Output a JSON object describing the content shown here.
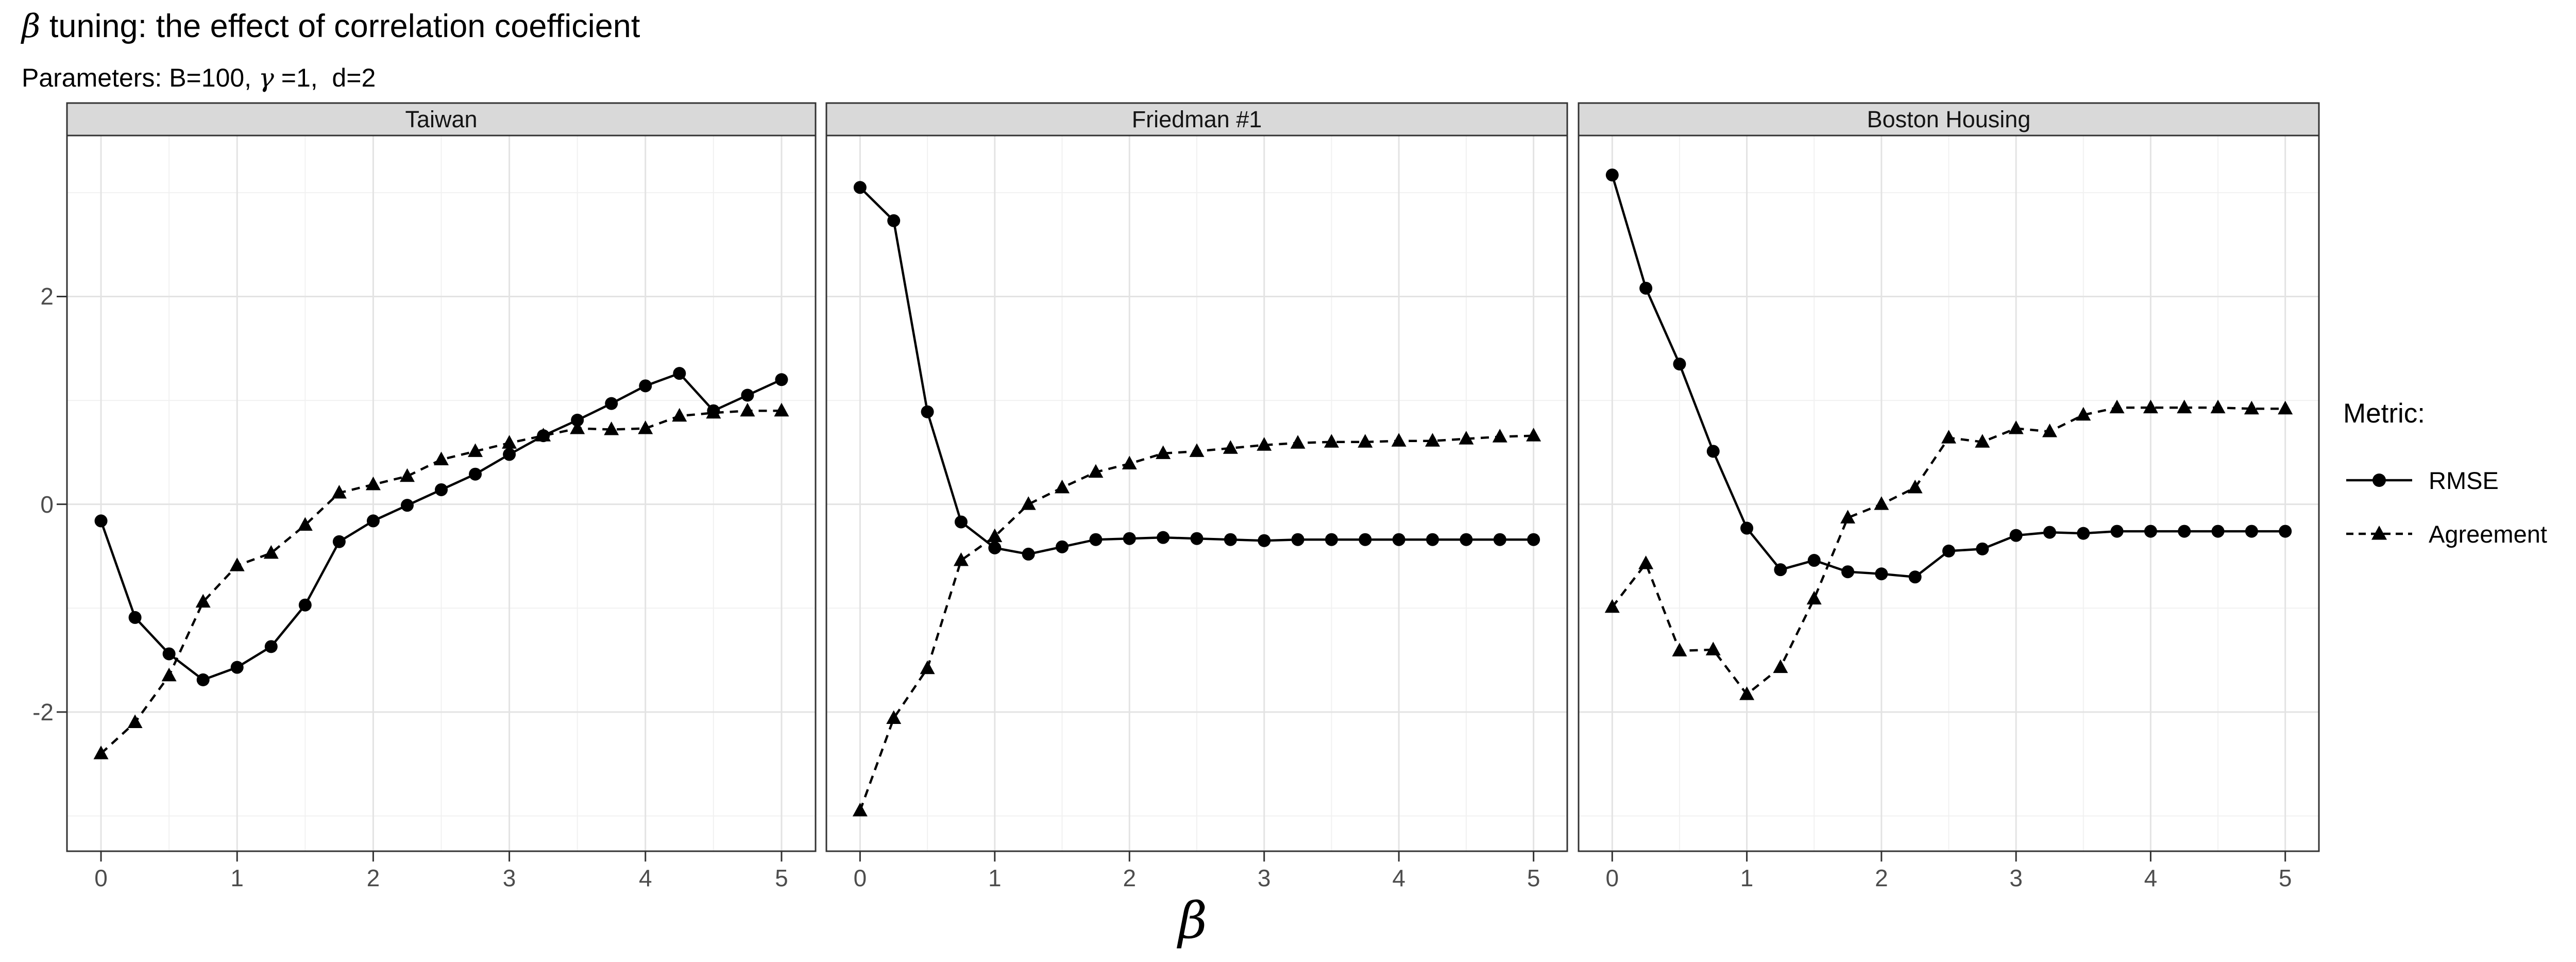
{
  "header": {
    "title_parts": {
      "symbol": "β",
      "text": " tuning: the effect of correlation coefficient"
    },
    "subtitle_parts": {
      "p1": "Parameters: B=100, ",
      "symbol": "γ",
      "p2": " =1,  d=2"
    }
  },
  "axes": {
    "x_label": "β",
    "x_tick_labels": [
      "0",
      "1",
      "2",
      "3",
      "4",
      "5"
    ],
    "y_tick_labels": [
      "2",
      "0",
      "-2"
    ]
  },
  "legend": {
    "title": "Metric:",
    "items": [
      {
        "label": "RMSE",
        "line": "solid",
        "marker": "circle"
      },
      {
        "label": "Agreement",
        "line": "dashed",
        "marker": "triangle"
      }
    ]
  },
  "colors": {
    "series": "#000000",
    "tick_label": "#4d4d4d",
    "grid_major": "#e3e3e3",
    "grid_minor": "#f1f1f1",
    "panel_border": "#333333",
    "strip_fill": "#d9d9d9",
    "background": "#ffffff"
  },
  "chart_data": {
    "type": "line",
    "title": "β tuning: the effect of correlation coefficient",
    "subtitle": "Parameters: B=100, γ =1,  d=2",
    "xlabel": "β",
    "ylabel": "",
    "legend_position": "right",
    "grid": true,
    "x_domain": [
      -0.25,
      5.25
    ],
    "y_domain": [
      -3.34,
      3.55
    ],
    "x_ticks": [
      0,
      1,
      2,
      3,
      4,
      5
    ],
    "y_ticks": [
      2,
      0,
      -2
    ],
    "x_minor_ticks": [
      0.5,
      1.5,
      2.5,
      3.5,
      4.5
    ],
    "y_minor_ticks": [
      3,
      1,
      -1,
      -3
    ],
    "x": [
      0,
      0.25,
      0.5,
      0.75,
      1,
      1.25,
      1.5,
      1.75,
      2,
      2.25,
      2.5,
      2.75,
      3,
      3.25,
      3.5,
      3.75,
      4,
      4.25,
      4.5,
      4.75,
      5
    ],
    "series_styles": [
      {
        "name": "RMSE",
        "line": "solid",
        "marker": "circle"
      },
      {
        "name": "Agreement",
        "line": "dashed",
        "marker": "triangle"
      }
    ],
    "panels": [
      {
        "label": "Taiwan",
        "series": [
          {
            "name": "RMSE",
            "values": [
              -0.16,
              -1.09,
              -1.44,
              -1.69,
              -1.57,
              -1.37,
              -0.97,
              -0.36,
              -0.16,
              -0.01,
              0.14,
              0.29,
              0.48,
              0.66,
              0.81,
              0.97,
              1.14,
              1.26,
              0.9,
              1.05,
              1.2
            ]
          },
          {
            "name": "Agreement",
            "values": [
              -2.4,
              -2.1,
              -1.65,
              -0.94,
              -0.59,
              -0.47,
              -0.2,
              0.11,
              0.19,
              0.27,
              0.43,
              0.51,
              0.59,
              0.66,
              0.73,
              0.72,
              0.73,
              0.85,
              0.88,
              0.9,
              0.9
            ]
          }
        ]
      },
      {
        "label": "Friedman #1",
        "series": [
          {
            "name": "RMSE",
            "values": [
              3.05,
              2.73,
              0.89,
              -0.17,
              -0.42,
              -0.48,
              -0.41,
              -0.34,
              -0.33,
              -0.32,
              -0.33,
              -0.34,
              -0.35,
              -0.34,
              -0.34,
              -0.34,
              -0.34,
              -0.34,
              -0.34,
              -0.34,
              -0.34
            ]
          },
          {
            "name": "Agreement",
            "values": [
              -2.95,
              -2.06,
              -1.58,
              -0.54,
              -0.31,
              0.0,
              0.16,
              0.31,
              0.39,
              0.49,
              0.51,
              0.54,
              0.57,
              0.59,
              0.6,
              0.6,
              0.61,
              0.61,
              0.63,
              0.65,
              0.66
            ]
          }
        ]
      },
      {
        "label": "Boston Housing",
        "series": [
          {
            "name": "RMSE",
            "values": [
              3.17,
              2.08,
              1.35,
              0.51,
              -0.23,
              -0.63,
              -0.54,
              -0.65,
              -0.67,
              -0.7,
              -0.45,
              -0.43,
              -0.3,
              -0.27,
              -0.28,
              -0.26,
              -0.26,
              -0.26,
              -0.26,
              -0.26,
              -0.26
            ]
          },
          {
            "name": "Agreement",
            "values": [
              -0.99,
              -0.57,
              -1.41,
              -1.4,
              -1.83,
              -1.57,
              -0.91,
              -0.13,
              0.0,
              0.16,
              0.64,
              0.6,
              0.73,
              0.7,
              0.86,
              0.93,
              0.93,
              0.93,
              0.93,
              0.92,
              0.92
            ]
          }
        ]
      }
    ]
  }
}
